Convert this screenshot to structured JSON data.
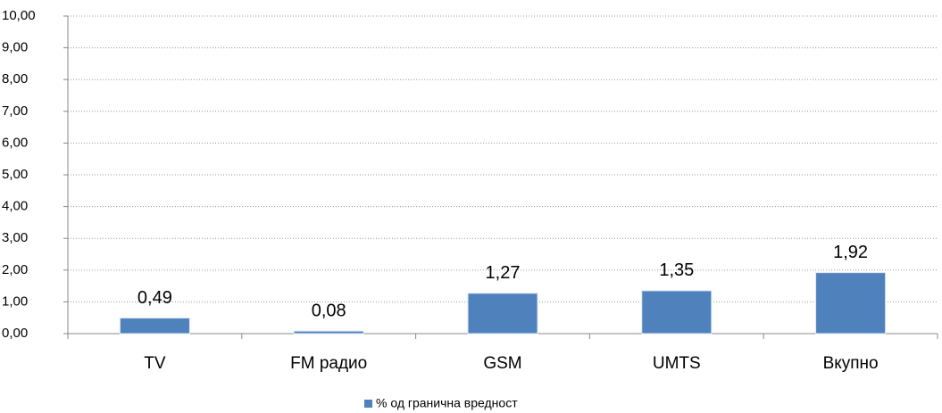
{
  "chart_data": {
    "type": "bar",
    "categories": [
      "TV",
      "FM радио",
      "GSM",
      "UMTS",
      "Вкупно"
    ],
    "series": [
      {
        "name": "% од гранична вредност",
        "color": "#4f81bd",
        "values": [
          0.49,
          0.08,
          1.27,
          1.35,
          1.92
        ],
        "value_labels": [
          "0,49",
          "0,08",
          "1,27",
          "1,35",
          "1,92"
        ]
      }
    ],
    "ylim": [
      0,
      10
    ],
    "yticks": [
      {
        "value": 0,
        "label": "0,00"
      },
      {
        "value": 1,
        "label": "1,00"
      },
      {
        "value": 2,
        "label": "2,00"
      },
      {
        "value": 3,
        "label": "3,00"
      },
      {
        "value": 4,
        "label": "4,00"
      },
      {
        "value": 5,
        "label": "5,00"
      },
      {
        "value": 6,
        "label": "6,00"
      },
      {
        "value": 7,
        "label": "7,00"
      },
      {
        "value": 8,
        "label": "8,00"
      },
      {
        "value": 9,
        "label": "9,00"
      },
      {
        "value": 10,
        "label": "10,00"
      }
    ],
    "grid": true,
    "legend": "bottom"
  }
}
